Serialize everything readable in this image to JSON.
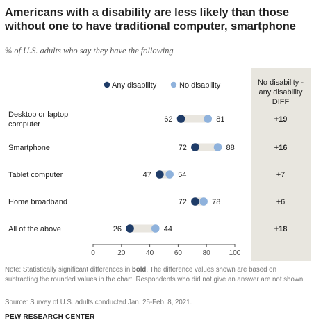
{
  "title": "Americans with a disability are less likely than those without one to have traditional computer, smartphone",
  "subtitle": "% of U.S. adults who say they have the following",
  "chart_data": {
    "type": "dot",
    "title": "Americans with a disability are less likely than those without one to have traditional computer, smartphone",
    "subtitle": "% of U.S. adults who say they have the following",
    "categories": [
      "Desktop or laptop computer",
      "Smartphone",
      "Tablet computer",
      "Home broadband",
      "All of the above"
    ],
    "category_lines": [
      [
        "Desktop or laptop",
        "computer"
      ],
      [
        "Smartphone"
      ],
      [
        "Tablet computer"
      ],
      [
        "Home broadband"
      ],
      [
        "All of the above"
      ]
    ],
    "series": [
      {
        "name": "Any disability",
        "values": [
          62,
          72,
          47,
          72,
          26
        ],
        "color": "#1f3c68"
      },
      {
        "name": "No disability",
        "values": [
          81,
          88,
          54,
          78,
          44
        ],
        "color": "#8fb2dc"
      }
    ],
    "diff": {
      "header": [
        "No disability -",
        "any disability",
        "DIFF"
      ],
      "values": [
        "+19",
        "+16",
        "+7",
        "+6",
        "+18"
      ],
      "significant": [
        true,
        true,
        false,
        false,
        true
      ]
    },
    "xticks": [
      0,
      20,
      40,
      60,
      80,
      100
    ],
    "xlim": [
      0,
      100
    ],
    "grid": false,
    "legend_position": "top",
    "colors": {
      "range_bar": "#e9e6df",
      "diff_panel": "#e8e6df",
      "axis": "#555555"
    }
  },
  "note": {
    "prefix": "Note: Statistically significant differences in ",
    "bold": "bold",
    "suffix": ". The difference values shown are based on subtracting the rounded values in the chart. Respondents who did not give an answer are not shown."
  },
  "source": "Source: Survey of U.S. adults conducted Jan. 25-Feb. 8, 2021.",
  "brand": "PEW RESEARCH CENTER"
}
